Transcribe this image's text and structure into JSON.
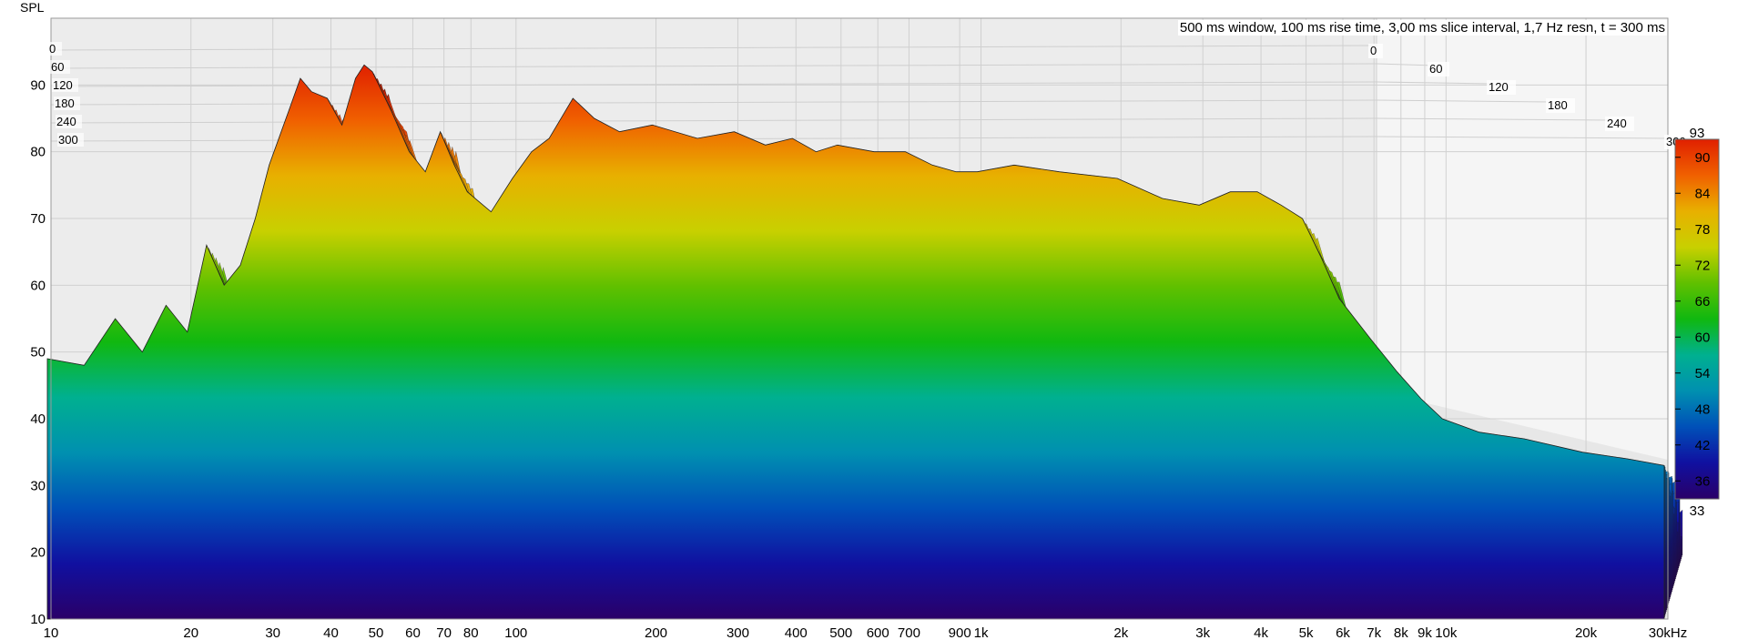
{
  "chart_data": {
    "type": "area",
    "title": "500 ms window, 100 ms rise time, 3,00 ms slice interval, 1,7 Hz resn, t = 300 ms",
    "ylabel": "SPL",
    "xlabel": "",
    "x_scale": "log",
    "xlim": [
      10,
      30000
    ],
    "ylim": [
      10,
      100
    ],
    "y_ticks": [
      "10",
      "20",
      "30",
      "40",
      "50",
      "60",
      "70",
      "80",
      "90"
    ],
    "x_ticks": [
      {
        "v": 10,
        "label": "10"
      },
      {
        "v": 20,
        "label": "20"
      },
      {
        "v": 30,
        "label": "30"
      },
      {
        "v": 40,
        "label": "40"
      },
      {
        "v": 50,
        "label": "50"
      },
      {
        "v": 60,
        "label": "60"
      },
      {
        "v": 70,
        "label": "70"
      },
      {
        "v": 80,
        "label": "80"
      },
      {
        "v": 100,
        "label": "100"
      },
      {
        "v": 200,
        "label": "200"
      },
      {
        "v": 300,
        "label": "300"
      },
      {
        "v": 400,
        "label": "400"
      },
      {
        "v": 500,
        "label": "500"
      },
      {
        "v": 600,
        "label": "600"
      },
      {
        "v": 700,
        "label": "700"
      },
      {
        "v": 900,
        "label": "900"
      },
      {
        "v": 1000,
        "label": "1k"
      },
      {
        "v": 2000,
        "label": "2k"
      },
      {
        "v": 3000,
        "label": "3k"
      },
      {
        "v": 4000,
        "label": "4k"
      },
      {
        "v": 5000,
        "label": "5k"
      },
      {
        "v": 6000,
        "label": "6k"
      },
      {
        "v": 7000,
        "label": "7k"
      },
      {
        "v": 8000,
        "label": "8k"
      },
      {
        "v": 9000,
        "label": "9k"
      },
      {
        "v": 10000,
        "label": "10k"
      },
      {
        "v": 20000,
        "label": "20k"
      },
      {
        "v": 30000,
        "label": "30kHz"
      }
    ],
    "time_slices_ms": [
      "0",
      "60",
      "120",
      "180",
      "240",
      "300"
    ],
    "colorbar": {
      "min": 33,
      "max": 93,
      "ticks": [
        "36",
        "42",
        "48",
        "54",
        "60",
        "66",
        "72",
        "78",
        "84",
        "90"
      ],
      "min_label": "33",
      "max_label": "93"
    },
    "series": [
      {
        "x": [
          10,
          12,
          14,
          16,
          18,
          20,
          22,
          24,
          26,
          28,
          30,
          33,
          35,
          37,
          40,
          43,
          46,
          48,
          50,
          55,
          60,
          65,
          70,
          75,
          80,
          90,
          100,
          110,
          120,
          135,
          150,
          170,
          200,
          250,
          300,
          350,
          400,
          450,
          500,
          600,
          700,
          800,
          900,
          1000,
          1200,
          1500,
          2000,
          2500,
          3000,
          3500,
          4000,
          4500,
          5000,
          5500,
          6000,
          7000,
          8000,
          9000,
          10000,
          12000,
          15000,
          20000,
          25000,
          30000
        ],
        "values": [
          49,
          48,
          55,
          50,
          57,
          53,
          66,
          60,
          63,
          70,
          78,
          86,
          91,
          89,
          88,
          84,
          91,
          93,
          92,
          86,
          80,
          77,
          83,
          78,
          74,
          71,
          76,
          80,
          82,
          88,
          85,
          83,
          84,
          82,
          83,
          81,
          82,
          80,
          81,
          80,
          80,
          78,
          77,
          77,
          78,
          77,
          76,
          73,
          72,
          74,
          74,
          72,
          70,
          64,
          58,
          52,
          47,
          43,
          40,
          38,
          37,
          35,
          34,
          33
        ]
      }
    ]
  }
}
